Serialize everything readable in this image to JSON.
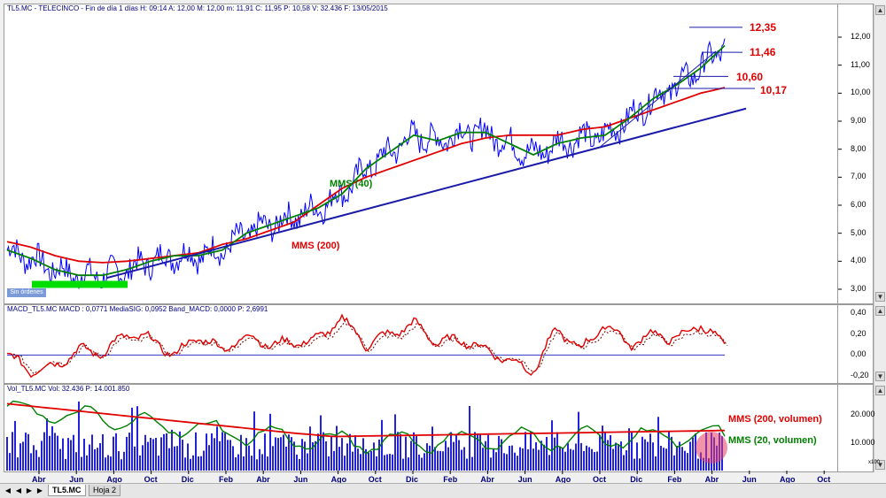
{
  "header_price": "TL5.MC - TELECINCO - Fin de día 1 días  H: 09:14  A: 12,00  M: 12,00  m: 11,91  C: 11,95  P: 10,58  V: 32.436  F: 13/05/2015",
  "header_macd": "MACD_TL5.MC  MACD : 0,0771  MediaSIG: 0,0952  Band_MACD: 0,0000  P: 2,6991",
  "header_vol": "Vol_TL5.MC  Vol: 32.436  P: 14.001.850",
  "badge_text": "Sin órdenes",
  "tabs": [
    "TL5.MC",
    "Hoja 2"
  ],
  "tab_nav": [
    "◀",
    "◀",
    "▶",
    "▶"
  ],
  "colors": {
    "price": "#0000ff",
    "mms40": "#008000",
    "mms200": "#e00000",
    "trend": "#1a1aa8",
    "support": "#00dd00",
    "label_red": "#e00000",
    "label_green": "#008000"
  },
  "chart_data": [
    {
      "type": "line",
      "title": "TL5.MC - TELECINCO",
      "x_tick_labels": [
        "Abr",
        "Jun",
        "Ago",
        "Oct",
        "Dic",
        "Feb",
        "Abr",
        "Jun",
        "Ago",
        "Oct",
        "Dic",
        "Feb",
        "Abr",
        "Jun",
        "Ago",
        "Oct",
        "Dic",
        "Feb",
        "Abr",
        "Jun",
        "Ago",
        "Oct"
      ],
      "y_ticks": [
        "12,00",
        "11,00",
        "10,00",
        "9,00",
        "8,00",
        "7,00",
        "6,00",
        "5,00",
        "4,00",
        "3,00"
      ],
      "ylim": [
        2.7,
        12.7
      ],
      "series": [
        {
          "name": "MMS (40)",
          "values": [
            4.4,
            4.1,
            3.7,
            3.5,
            3.5,
            3.7,
            4.0,
            4.2,
            4.2,
            4.4,
            5.0,
            5.3,
            5.6,
            5.9,
            6.4,
            7.3,
            7.9,
            8.5,
            8.3,
            8.6,
            8.6,
            8.2,
            7.8,
            8.2,
            8.4,
            8.5,
            9.1,
            9.8,
            10.3,
            10.9,
            11.7
          ]
        },
        {
          "name": "MMS (200)",
          "values": [
            4.7,
            4.5,
            4.2,
            4.0,
            3.95,
            4.0,
            4.1,
            4.2,
            4.3,
            4.6,
            4.8,
            5.1,
            5.4,
            6.0,
            6.6,
            7.0,
            7.3,
            7.6,
            7.9,
            8.2,
            8.4,
            8.5,
            8.5,
            8.5,
            8.7,
            8.8,
            9.1,
            9.4,
            9.7,
            10.0,
            10.2
          ]
        }
      ],
      "annotations": [
        "12,35",
        "11,46",
        "10,60",
        "10,17",
        "MMS (40)",
        "MMS (200)"
      ]
    },
    {
      "type": "line",
      "title": "MACD_TL5.MC",
      "y_ticks": [
        "0,40",
        "0,20",
        "0,00",
        "-0,20"
      ],
      "ylim": [
        -0.28,
        0.46
      ],
      "series": [
        {
          "name": "MACD",
          "values": [
            0.0,
            -0.15,
            -0.1,
            0.05,
            0.02,
            0.2,
            0.15,
            0.0,
            0.18,
            0.05,
            0.18,
            0.1,
            0.12,
            0.15,
            0.35,
            0.1,
            0.2,
            0.3,
            0.12,
            0.15,
            0.05,
            -0.05,
            -0.15,
            0.25,
            0.05,
            0.3,
            0.1,
            0.2,
            0.15,
            0.3,
            0.08
          ]
        }
      ]
    },
    {
      "type": "bar",
      "title": "Vol_TL5.MC",
      "y_ticks": [
        "20.000",
        "10.000"
      ],
      "y_unit": "x100",
      "annotations": [
        "MMS (200, volumen)",
        "MMS (20, volumen)"
      ]
    }
  ],
  "labels": {
    "p1235": "12,35",
    "p1146": "11,46",
    "p1060": "10,60",
    "p1017": "10,17",
    "mms40": "MMS (40)",
    "mms200": "MMS (200)",
    "vol200": "MMS (200, volumen)",
    "vol20": "MMS (20, volumen)"
  },
  "price_ticks": [
    "12,00",
    "11,00",
    "10,00",
    "9,00",
    "8,00",
    "7,00",
    "6,00",
    "5,00",
    "4,00",
    "3,00"
  ],
  "macd_ticks": [
    "0,40",
    "0,20",
    "0,00",
    "-0,20"
  ],
  "vol_ticks": [
    "20.000",
    "10.000"
  ],
  "vol_unit": "x100",
  "x_labels": [
    "Abr",
    "Jun",
    "Ago",
    "Oct",
    "Dic",
    "Feb",
    "Abr",
    "Jun",
    "Ago",
    "Oct",
    "Dic",
    "Feb",
    "Abr",
    "Jun",
    "Ago",
    "Oct",
    "Dic",
    "Feb",
    "Abr",
    "Jun",
    "Ago",
    "Oct"
  ]
}
